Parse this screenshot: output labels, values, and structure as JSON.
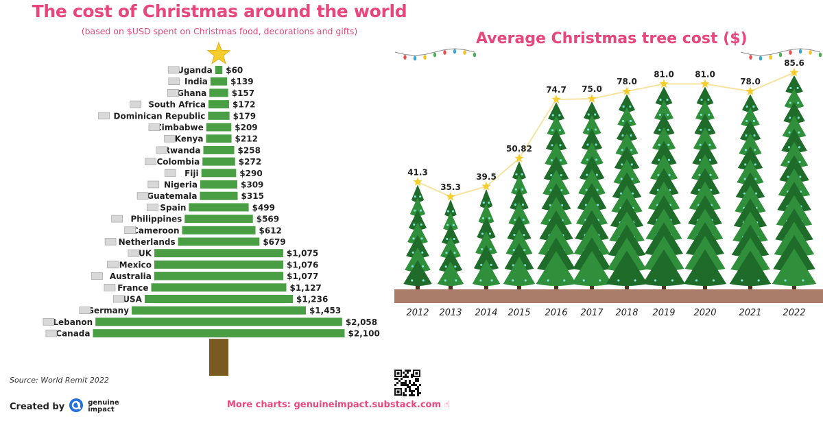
{
  "left": {
    "title": "The cost of Christmas around the world",
    "subtitle": "(based on $USD spent on Christmas food, decorations and gifts)",
    "source": "Source: World Remit 2022"
  },
  "right": {
    "title": "Average Christmas tree cost  ($)"
  },
  "footer": {
    "created_by": "Created by",
    "brand": "genuine impact",
    "more_charts": "More charts: genuineimpact.substack.com ☝"
  },
  "colors": {
    "accent": "#e8467c",
    "bar": "#4a9e44",
    "trunk": "#7a5a20",
    "star": "#f5cd2e",
    "tree": "#2f8f3a",
    "tree_dark": "#1e6b2a",
    "ground": "#a97d6a"
  },
  "chart_data": [
    {
      "type": "bar",
      "orientation": "horizontal",
      "title": "The cost of Christmas around the world",
      "subtitle": "(based on $USD spent on Christmas food, decorations and gifts)",
      "categories": [
        "Uganda",
        "India",
        "Ghana",
        "South Africa",
        "Dominican Republic",
        "Zimbabwe",
        "Kenya",
        "Rwanda",
        "Colombia",
        "Fiji",
        "Nigeria",
        "Guatemala",
        "Spain",
        "Philippines",
        "Cameroon",
        "Netherlands",
        "UK",
        "Mexico",
        "Australia",
        "France",
        "USA",
        "Germany",
        "Lebanon",
        "Canada"
      ],
      "values": [
        60,
        139,
        157,
        172,
        179,
        209,
        212,
        258,
        272,
        290,
        309,
        315,
        499,
        569,
        612,
        679,
        1075,
        1076,
        1077,
        1127,
        1236,
        1453,
        2058,
        2100
      ],
      "value_labels": [
        "$60",
        "$139",
        "$157",
        "$172",
        "$179",
        "$209",
        "$212",
        "$258",
        "$272",
        "$290",
        "$309",
        "$315",
        "$499",
        "$569",
        "$612",
        "$679",
        "$1,075",
        "$1,076",
        "$1,077",
        "$1,127",
        "$1,236",
        "$1,453",
        "$2,058",
        "$2,100"
      ],
      "xlim": [
        0,
        2100
      ]
    },
    {
      "type": "line",
      "title": "Average Christmas tree cost  ($)",
      "x": [
        "2012",
        "2013",
        "2014",
        "2015",
        "2016",
        "2017",
        "2018",
        "2019",
        "2020",
        "2021",
        "2022"
      ],
      "values": [
        41.3,
        35.3,
        39.5,
        50.82,
        74.7,
        75.0,
        78.0,
        81.0,
        81.0,
        78.0,
        85.6
      ],
      "value_labels": [
        "41.3",
        "35.3",
        "39.5",
        "50.82",
        "74.7",
        "75.0",
        "78.0",
        "81.0",
        "81.0",
        "78.0",
        "85.6"
      ],
      "ylim": [
        0,
        100
      ]
    }
  ]
}
